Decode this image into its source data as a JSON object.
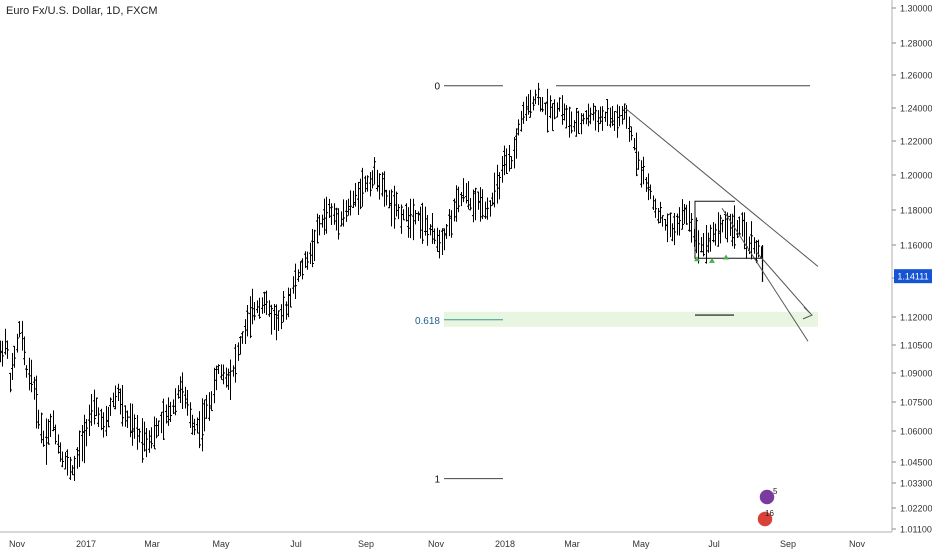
{
  "title": "Euro Fx/U.S. Dollar, 1D, FXCM",
  "price_scale": [
    "1.30000",
    "1.28000",
    "1.26000",
    "1.24000",
    "1.22000",
    "1.20000",
    "1.18000",
    "1.16000",
    "1.14000",
    "1.12000",
    "1.10500",
    "1.09000",
    "1.07500",
    "1.06000",
    "1.04500",
    "1.03300",
    "1.02200",
    "1.01100"
  ],
  "current_price": "1.14111",
  "time_axis": [
    "Nov",
    "2017",
    "Mar",
    "May",
    "Jul",
    "Sep",
    "Nov",
    "2018",
    "Mar",
    "May",
    "Jul",
    "Sep",
    "Nov"
  ],
  "fib": {
    "level_0": "0",
    "level_0618": "0.618",
    "level_1": "1"
  },
  "icons": {
    "event_1": "5",
    "event_2": "16"
  },
  "colors": {
    "candle": "#000000",
    "fib_green": "#2e9e8f",
    "zone": "#e8f5e0",
    "price_tag": "#1555d5",
    "event_purple": "#7a3aa0",
    "event_red": "#d8403a"
  },
  "chart_data": {
    "type": "line",
    "style": "ohlc-bars",
    "title": "Euro Fx/U.S. Dollar, 1D, FXCM",
    "xlabel": "",
    "ylabel": "",
    "grid": false,
    "ylim": [
      1.005,
      1.305
    ],
    "x": [
      "2016-10",
      "2016-11",
      "2016-12",
      "2017-01",
      "2017-02",
      "2017-03",
      "2017-04",
      "2017-05",
      "2017-06",
      "2017-07",
      "2017-08",
      "2017-09",
      "2017-10",
      "2017-11",
      "2017-12",
      "2018-01",
      "2018-02",
      "2018-03",
      "2018-04",
      "2018-05",
      "2018-06",
      "2018-07",
      "2018-08"
    ],
    "series": [
      {
        "values": [
          1.1,
          1.09,
          1.045,
          1.045,
          1.065,
          1.07,
          1.07,
          1.1,
          1.125,
          1.155,
          1.19,
          1.195,
          1.165,
          1.17,
          1.18,
          1.2,
          1.245,
          1.23,
          1.235,
          1.165,
          1.165,
          1.17,
          1.141
        ]
      }
    ],
    "current_price": 1.14111,
    "fibonacci": {
      "0": 1.2535,
      "0.618": 1.1185,
      "1": 1.0355
    }
  }
}
